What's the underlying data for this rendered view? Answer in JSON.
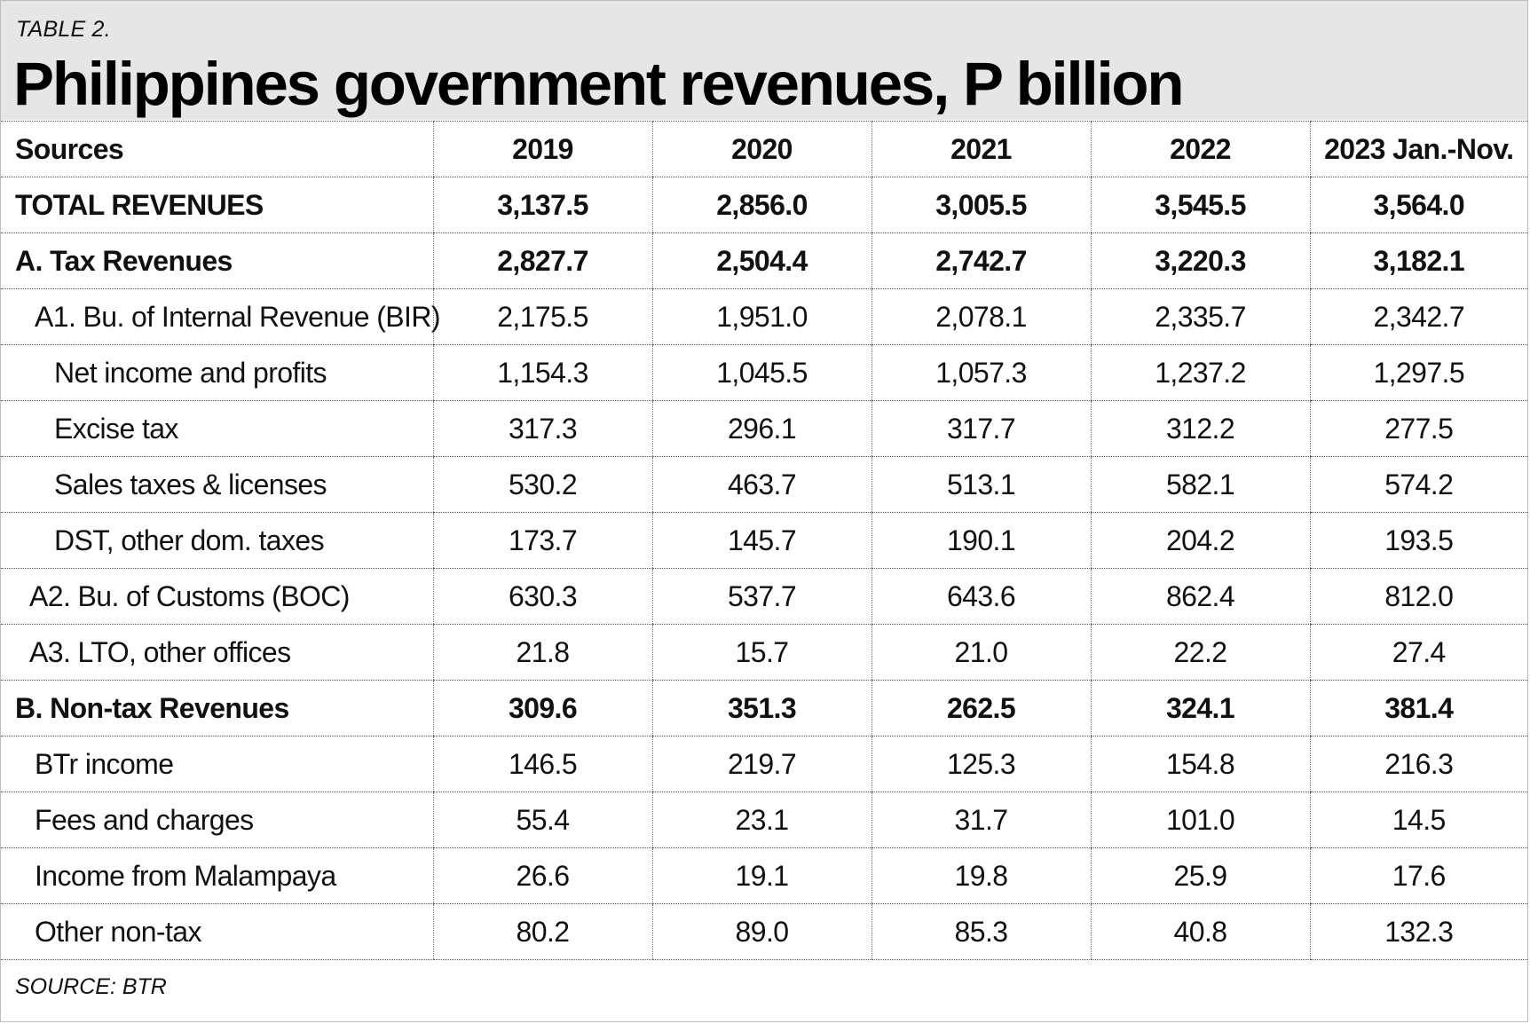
{
  "label": "TABLE 2.",
  "title": "Philippines government revenues, P billion",
  "columns": [
    "Sources",
    "2019",
    "2020",
    "2021",
    "2022",
    "2023 Jan.-Nov."
  ],
  "rows": [
    {
      "label": "TOTAL REVENUES",
      "values": [
        "3,137.5",
        "2,856.0",
        "3,005.5",
        "3,545.5",
        "3,564.0"
      ]
    },
    {
      "label": "A. Tax Revenues",
      "values": [
        "2,827.7",
        "2,504.4",
        "2,742.7",
        "3,220.3",
        "3,182.1"
      ]
    },
    {
      "label": "A1. Bu. of Internal Revenue (BIR)",
      "values": [
        "2,175.5",
        "1,951.0",
        "2,078.1",
        "2,335.7",
        "2,342.7"
      ]
    },
    {
      "label": "Net income and profits",
      "values": [
        "1,154.3",
        "1,045.5",
        "1,057.3",
        "1,237.2",
        "1,297.5"
      ]
    },
    {
      "label": "Excise tax",
      "values": [
        "317.3",
        "296.1",
        "317.7",
        "312.2",
        "277.5"
      ]
    },
    {
      "label": "Sales taxes & licenses",
      "values": [
        "530.2",
        "463.7",
        "513.1",
        "582.1",
        "574.2"
      ]
    },
    {
      "label": "DST, other dom. taxes",
      "values": [
        "173.7",
        "145.7",
        "190.1",
        "204.2",
        "193.5"
      ]
    },
    {
      "label": "A2. Bu. of Customs (BOC)",
      "values": [
        "630.3",
        "537.7",
        "643.6",
        "862.4",
        "812.0"
      ]
    },
    {
      "label": "A3. LTO, other offices",
      "values": [
        "21.8",
        "15.7",
        "21.0",
        "22.2",
        "27.4"
      ]
    },
    {
      "label": "B. Non-tax Revenues",
      "values": [
        "309.6",
        "351.3",
        "262.5",
        "324.1",
        "381.4"
      ]
    },
    {
      "label": "BTr income",
      "values": [
        "146.5",
        "219.7",
        "125.3",
        "154.8",
        "216.3"
      ]
    },
    {
      "label": "Fees and charges",
      "values": [
        "55.4",
        "23.1",
        "31.7",
        "101.0",
        "14.5"
      ]
    },
    {
      "label": "Income from Malampaya",
      "values": [
        "26.6",
        "19.1",
        "19.8",
        "25.9",
        "17.6"
      ]
    },
    {
      "label": "Other non-tax",
      "values": [
        "80.2",
        "89.0",
        "85.3",
        "40.8",
        "132.3"
      ]
    }
  ],
  "source": "SOURCE: BTR",
  "colors": {
    "header_bg": "#e6e6e6",
    "text": "#111111",
    "rule": "#555555"
  }
}
